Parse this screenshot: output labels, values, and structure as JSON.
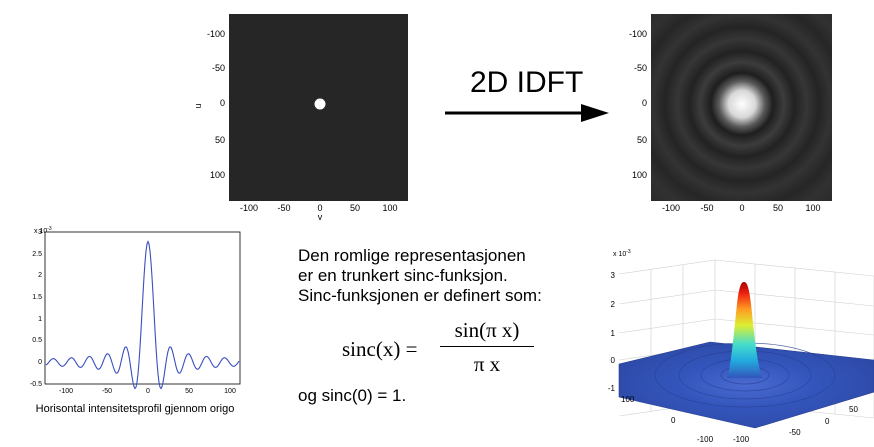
{
  "arrow": {
    "label": "2D IDFT"
  },
  "left_image": {
    "y_axis_label": "u",
    "x_axis_label": "v",
    "y_ticks": [
      "-100",
      "-50",
      "0",
      "50",
      "100"
    ],
    "x_ticks": [
      "-100",
      "-50",
      "0",
      "50",
      "100"
    ]
  },
  "right_image": {
    "y_ticks": [
      "-100",
      "-50",
      "0",
      "50",
      "100"
    ],
    "x_ticks": [
      "-100",
      "-50",
      "0",
      "50",
      "100"
    ]
  },
  "profile_plot": {
    "exponent_label": "x 10",
    "exponent_power": "-3",
    "y_ticks": [
      "3",
      "2.5",
      "2",
      "1.5",
      "1",
      "0.5",
      "0",
      "-0.5"
    ],
    "x_ticks": [
      "-100",
      "-50",
      "0",
      "50",
      "100"
    ],
    "caption": "Horisontal intensitetsprofil gjennom origo"
  },
  "surface_plot": {
    "exponent_label": "x 10",
    "exponent_power": "-3",
    "z_ticks": [
      "3",
      "2",
      "1",
      "0",
      "-1"
    ],
    "left_axis_ticks": [
      "100",
      "0",
      "-100"
    ],
    "right_axis_ticks": [
      "-100",
      "-50",
      "0",
      "50"
    ]
  },
  "text": {
    "line1": "Den romlige representasjonen",
    "line2": "er en trunkert sinc-funksjon.",
    "line3": "Sinc-funksjonen er definert som:",
    "formula_lhs": "sinc(x) =",
    "formula_numerator": "sin(π x)",
    "formula_denominator": "π x",
    "footnote": "og sinc(0) = 1."
  },
  "colors": {
    "image_bg": "#262626",
    "curve": "#3a4fc0",
    "surface": "#3355bb",
    "peak": "#cc1111"
  }
}
